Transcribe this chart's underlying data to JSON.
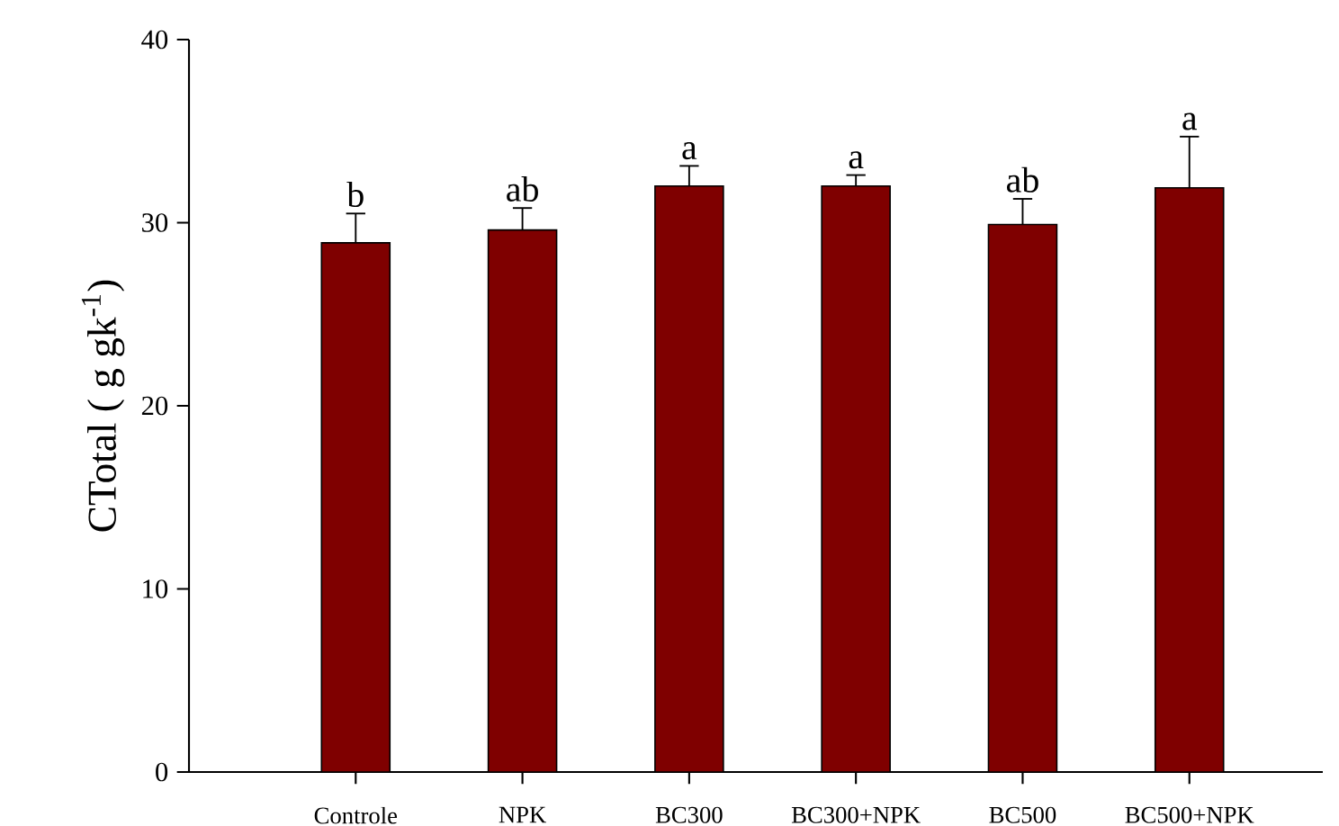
{
  "chart_data": {
    "type": "bar",
    "ylabel": "CTotal ( g gk$^{-1}$)",
    "categories": [
      "Controle",
      "NPK",
      "BC300",
      "BC300+NPK",
      "BC500",
      "BC500+NPK"
    ],
    "values": [
      28.9,
      29.6,
      32.0,
      32.0,
      29.9,
      31.9
    ],
    "errors": [
      [
        28.9,
        30.5
      ],
      [
        29.6,
        30.8
      ],
      [
        32.0,
        33.1
      ],
      [
        32.0,
        32.6
      ],
      [
        29.9,
        31.3
      ],
      [
        31.9,
        34.7
      ]
    ],
    "color": "#7f0000",
    "ylim": [
      0,
      40
    ],
    "yticks": [
      0,
      10,
      20,
      30,
      40
    ],
    "annotations": [
      "b",
      "ab",
      "a",
      "a",
      "ab",
      "a"
    ]
  }
}
